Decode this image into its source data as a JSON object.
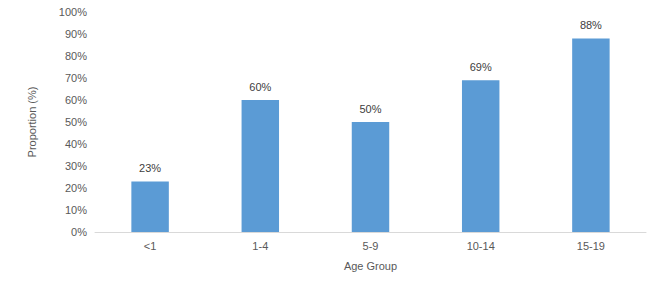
{
  "chart_data": {
    "type": "bar",
    "x_label": "Age Group",
    "y_label": "Proportion (%)",
    "categories": [
      "<1",
      "1-4",
      "5-9",
      "10-14",
      "15-19"
    ],
    "values": [
      23,
      60,
      50,
      69,
      88
    ],
    "value_labels": [
      "23%",
      "60%",
      "50%",
      "69%",
      "88%"
    ],
    "color": "#5b9bd5",
    "ylim": [
      0,
      100
    ],
    "yticks": [
      {
        "value": 0,
        "label": "0%"
      },
      {
        "value": 10,
        "label": "10%"
      },
      {
        "value": 20,
        "label": "20%"
      },
      {
        "value": 30,
        "label": "30%"
      },
      {
        "value": 40,
        "label": "40%"
      },
      {
        "value": 50,
        "label": "50%"
      },
      {
        "value": 60,
        "label": "60%"
      },
      {
        "value": 70,
        "label": "70%"
      },
      {
        "value": 80,
        "label": "80%"
      },
      {
        "value": 90,
        "label": "90%"
      },
      {
        "value": 100,
        "label": "100%"
      }
    ],
    "grid": false,
    "data_labels": true
  }
}
